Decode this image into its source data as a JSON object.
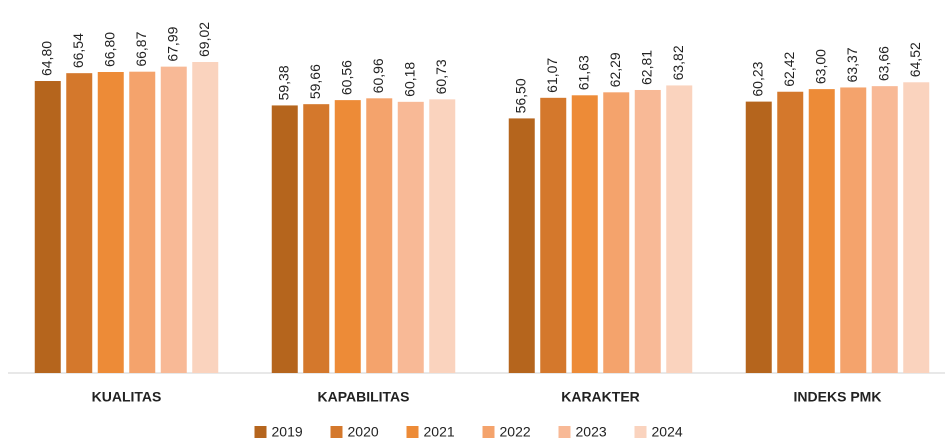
{
  "chart_data": {
    "type": "bar",
    "categories": [
      "KUALITAS",
      "KAPABILITAS",
      "KARAKTER",
      "INDEKS PMK"
    ],
    "ylim": [
      0,
      80
    ],
    "legend": "bottom",
    "series": [
      {
        "name": "2019",
        "color": "#b5651d",
        "values": [
          64.8,
          59.38,
          56.5,
          60.23
        ],
        "value_labels": [
          "64,80",
          "59,38",
          "56,50",
          "60,23"
        ]
      },
      {
        "name": "2020",
        "color": "#d4782c",
        "values": [
          66.54,
          59.66,
          61.07,
          62.42
        ],
        "value_labels": [
          "66,54",
          "59,66",
          "61,07",
          "62,42"
        ]
      },
      {
        "name": "2021",
        "color": "#ed8b37",
        "values": [
          66.8,
          60.56,
          61.63,
          63.0
        ],
        "value_labels": [
          "66,80",
          "60,56",
          "61,63",
          "63,00"
        ]
      },
      {
        "name": "2022",
        "color": "#f4a36c",
        "values": [
          66.87,
          60.96,
          62.29,
          63.37
        ],
        "value_labels": [
          "66,87",
          "60,96",
          "62,29",
          "63,37"
        ]
      },
      {
        "name": "2023",
        "color": "#f8b996",
        "values": [
          67.99,
          60.18,
          62.81,
          63.66
        ],
        "value_labels": [
          "67,99",
          "60,18",
          "62,81",
          "63,66"
        ]
      },
      {
        "name": "2024",
        "color": "#fad3be",
        "values": [
          69.02,
          60.73,
          63.82,
          64.52
        ],
        "value_labels": [
          "69,02",
          "60,73",
          "63,82",
          "64,52"
        ]
      }
    ]
  }
}
